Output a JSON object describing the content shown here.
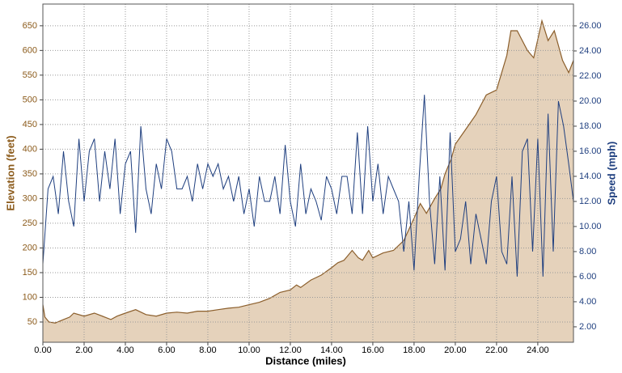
{
  "chart_data": {
    "type": "line",
    "xlabel": "Distance (miles)",
    "ylabel": "Elevation (feet)",
    "y2label": "Speed (mph)",
    "ylabel_color": "#8b5a1a",
    "y2label_color": "#1f3f7f",
    "xlim": [
      0,
      25.73
    ],
    "ylim": [
      9,
      694
    ],
    "y2lim": [
      0.77,
      27.74
    ],
    "grid": true,
    "xticks": [
      {
        "value": 0,
        "label": "0.00"
      },
      {
        "value": 2,
        "label": "2.00"
      },
      {
        "value": 4,
        "label": "4.00"
      },
      {
        "value": 6,
        "label": "6.00"
      },
      {
        "value": 8,
        "label": "8.00"
      },
      {
        "value": 10,
        "label": "10.00"
      },
      {
        "value": 12,
        "label": "12.00"
      },
      {
        "value": 14,
        "label": "14.00"
      },
      {
        "value": 16,
        "label": "16.00"
      },
      {
        "value": 18,
        "label": "18.00"
      },
      {
        "value": 20,
        "label": "20.00"
      },
      {
        "value": 22,
        "label": "22.00"
      },
      {
        "value": 24,
        "label": "24.00"
      }
    ],
    "yticks": [
      50,
      100,
      150,
      200,
      250,
      300,
      350,
      400,
      450,
      500,
      550,
      600,
      650
    ],
    "y2ticks": [
      {
        "value": 2,
        "label": "2.00"
      },
      {
        "value": 4,
        "label": "4.00"
      },
      {
        "value": 6,
        "label": "6.00"
      },
      {
        "value": 8,
        "label": "8.00"
      },
      {
        "value": 10,
        "label": "10.00"
      },
      {
        "value": 12,
        "label": "12.00"
      },
      {
        "value": 14,
        "label": "14.00"
      },
      {
        "value": 16,
        "label": "16.00"
      },
      {
        "value": 18,
        "label": "18.00"
      },
      {
        "value": 20,
        "label": "20.00"
      },
      {
        "value": 22,
        "label": "22.00"
      },
      {
        "value": 24,
        "label": "24.00"
      },
      {
        "value": 26,
        "label": "26.00"
      }
    ],
    "series": [
      {
        "type": "area",
        "color": "#8b5e2b",
        "fill": "#e5d2bb",
        "x": [
          0,
          0.1,
          0.3,
          0.6,
          1.0,
          1.3,
          1.5,
          2.0,
          2.5,
          3.0,
          3.3,
          3.6,
          4.0,
          4.5,
          5.0,
          5.5,
          6.0,
          6.5,
          7.0,
          7.5,
          8.0,
          8.5,
          9.0,
          9.5,
          10.0,
          10.5,
          11.0,
          11.5,
          12.0,
          12.3,
          12.5,
          13.0,
          13.5,
          14.0,
          14.3,
          14.6,
          15.0,
          15.3,
          15.5,
          15.8,
          16.0,
          16.5,
          17.0,
          17.5,
          18.0,
          18.3,
          18.6,
          19.0,
          19.3,
          19.5,
          19.8,
          20.0,
          20.5,
          21.0,
          21.5,
          22.0,
          22.5,
          22.7,
          23.0,
          23.5,
          23.8,
          24.2,
          24.5,
          24.8,
          25.2,
          25.5,
          25.73
        ],
        "values": [
          85,
          60,
          50,
          48,
          55,
          60,
          68,
          62,
          68,
          60,
          55,
          62,
          68,
          75,
          65,
          62,
          68,
          70,
          68,
          72,
          72,
          75,
          78,
          80,
          85,
          90,
          98,
          110,
          115,
          125,
          120,
          135,
          145,
          160,
          170,
          175,
          195,
          180,
          175,
          195,
          180,
          190,
          195,
          215,
          260,
          290,
          270,
          300,
          320,
          350,
          380,
          410,
          440,
          470,
          510,
          520,
          590,
          640,
          640,
          600,
          585,
          660,
          620,
          640,
          580,
          555,
          580
        ]
      },
      {
        "type": "line",
        "axis": "y2",
        "color": "#1f3f7f",
        "x": [
          0,
          0.25,
          0.5,
          0.75,
          1.0,
          1.25,
          1.5,
          1.75,
          2.0,
          2.25,
          2.5,
          2.75,
          3.0,
          3.25,
          3.5,
          3.75,
          4.0,
          4.25,
          4.5,
          4.75,
          5.0,
          5.25,
          5.5,
          5.75,
          6.0,
          6.25,
          6.5,
          6.75,
          7.0,
          7.25,
          7.5,
          7.75,
          8.0,
          8.25,
          8.5,
          8.75,
          9.0,
          9.25,
          9.5,
          9.75,
          10.0,
          10.25,
          10.5,
          10.75,
          11.0,
          11.25,
          11.5,
          11.75,
          12.0,
          12.25,
          12.5,
          12.75,
          13.0,
          13.25,
          13.5,
          13.75,
          14.0,
          14.25,
          14.5,
          14.75,
          15.0,
          15.25,
          15.5,
          15.75,
          16.0,
          16.25,
          16.5,
          16.75,
          17.0,
          17.25,
          17.5,
          17.75,
          18.0,
          18.25,
          18.5,
          18.75,
          19.0,
          19.25,
          19.5,
          19.75,
          20.0,
          20.25,
          20.5,
          20.75,
          21.0,
          21.25,
          21.5,
          21.75,
          22.0,
          22.25,
          22.5,
          22.75,
          23.0,
          23.25,
          23.5,
          23.75,
          24.0,
          24.25,
          24.5,
          24.75,
          25.0,
          25.25,
          25.5,
          25.73
        ],
        "values": [
          7,
          13,
          14,
          11,
          16,
          12,
          10,
          17,
          12,
          16,
          17,
          12,
          16,
          13,
          17,
          11,
          15,
          16,
          9.5,
          18,
          13,
          11,
          15,
          13,
          17,
          16,
          13,
          13,
          14,
          12,
          15,
          13,
          15,
          14,
          15,
          13,
          14,
          12,
          14,
          11,
          13,
          10,
          14,
          12,
          12,
          14,
          11,
          16.5,
          12,
          10,
          15,
          11,
          13,
          12,
          10.5,
          14,
          13,
          11,
          14,
          14,
          11,
          17.5,
          11,
          18,
          12,
          15,
          11,
          14,
          13,
          12,
          8,
          12,
          6.5,
          14,
          20.5,
          12,
          7,
          14,
          6.5,
          17.5,
          8,
          9,
          12,
          7,
          11,
          9,
          7,
          12,
          14,
          8,
          7,
          14,
          6,
          16,
          17,
          8,
          17,
          6,
          19,
          8,
          20,
          18,
          15,
          12
        ]
      }
    ]
  }
}
